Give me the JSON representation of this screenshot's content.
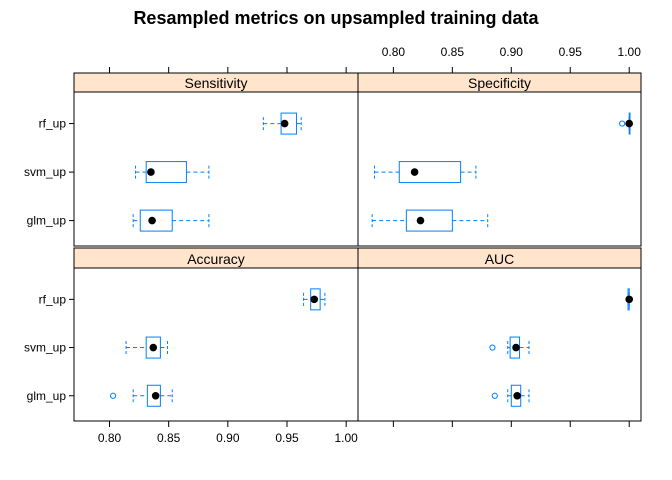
{
  "chart_data": {
    "type": "boxplot",
    "title": "Resampled metrics on upsampled training data",
    "categories": [
      "rf_up",
      "svm_up",
      "glm_up"
    ],
    "x_ticks": [
      0.8,
      0.85,
      0.9,
      0.95,
      1.0
    ],
    "x_tick_labels": [
      "0.80",
      "0.85",
      "0.90",
      "0.95",
      "1.00"
    ],
    "xlim": [
      0.77,
      1.01
    ],
    "colors": {
      "box": "#0080ff",
      "strip": "#ffe5cc",
      "median": "#000000"
    },
    "panels": [
      {
        "name": "Sensitivity",
        "boxes": [
          {
            "category": "rf_up",
            "whisker_low": 0.93,
            "q1": 0.945,
            "median": 0.948,
            "q3": 0.958,
            "whisker_high": 0.962,
            "outliers": []
          },
          {
            "category": "svm_up",
            "whisker_low": 0.822,
            "q1": 0.831,
            "median": 0.835,
            "q3": 0.865,
            "whisker_high": 0.884,
            "outliers": []
          },
          {
            "category": "glm_up",
            "whisker_low": 0.82,
            "q1": 0.826,
            "median": 0.836,
            "q3": 0.853,
            "whisker_high": 0.884,
            "outliers": []
          }
        ]
      },
      {
        "name": "Specificity",
        "boxes": [
          {
            "category": "rf_up",
            "whisker_low": 1.0,
            "q1": 1.0,
            "median": 1.0,
            "q3": 1.0,
            "whisker_high": 1.0,
            "outliers": [
              0.994
            ]
          },
          {
            "category": "svm_up",
            "whisker_low": 0.784,
            "q1": 0.805,
            "median": 0.818,
            "q3": 0.857,
            "whisker_high": 0.87,
            "outliers": []
          },
          {
            "category": "glm_up",
            "whisker_low": 0.782,
            "q1": 0.811,
            "median": 0.823,
            "q3": 0.85,
            "whisker_high": 0.88,
            "outliers": []
          }
        ]
      },
      {
        "name": "Accuracy",
        "boxes": [
          {
            "category": "rf_up",
            "whisker_low": 0.964,
            "q1": 0.97,
            "median": 0.973,
            "q3": 0.978,
            "whisker_high": 0.982,
            "outliers": []
          },
          {
            "category": "svm_up",
            "whisker_low": 0.814,
            "q1": 0.831,
            "median": 0.837,
            "q3": 0.843,
            "whisker_high": 0.849,
            "outliers": []
          },
          {
            "category": "glm_up",
            "whisker_low": 0.82,
            "q1": 0.832,
            "median": 0.839,
            "q3": 0.843,
            "whisker_high": 0.853,
            "outliers": [
              0.803
            ]
          }
        ]
      },
      {
        "name": "AUC",
        "boxes": [
          {
            "category": "rf_up",
            "whisker_low": 0.999,
            "q1": 0.999,
            "median": 1.0,
            "q3": 1.0,
            "whisker_high": 1.0,
            "outliers": []
          },
          {
            "category": "svm_up",
            "whisker_low": 0.897,
            "q1": 0.899,
            "median": 0.904,
            "q3": 0.907,
            "whisker_high": 0.915,
            "outliers": [
              0.884
            ]
          },
          {
            "category": "glm_up",
            "whisker_low": 0.897,
            "q1": 0.9,
            "median": 0.905,
            "q3": 0.908,
            "whisker_high": 0.915,
            "outliers": [
              0.886
            ]
          }
        ]
      }
    ]
  }
}
